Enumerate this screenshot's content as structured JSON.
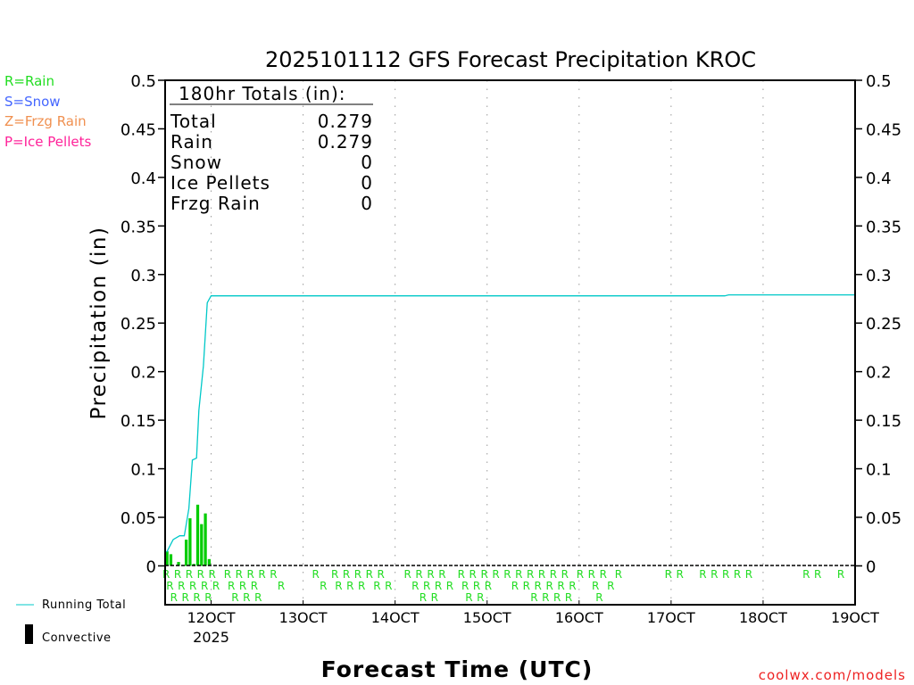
{
  "chart_data": {
    "type": "bar",
    "title": "2025101112 GFS Forecast Precipitation KROC",
    "xlabel": "Forecast Time (UTC)",
    "ylabel": "Precipitation (in)",
    "ylim": [
      -0.04,
      0.5
    ],
    "xlim_hours": [
      0,
      180
    ],
    "yticks": [
      0,
      0.05,
      0.1,
      0.15,
      0.2,
      0.25,
      0.3,
      0.35,
      0.4,
      0.45,
      0.5
    ],
    "ytick_labels": [
      "0",
      "0.05",
      "0.1",
      "0.15",
      "0.2",
      "0.25",
      "0.3",
      "0.35",
      "0.4",
      "0.45",
      "0.5"
    ],
    "xticks": [
      {
        "hour": 12,
        "label": "12OCT",
        "sublabel": "2025"
      },
      {
        "hour": 36,
        "label": "13OCT"
      },
      {
        "hour": 60,
        "label": "14OCT"
      },
      {
        "hour": 84,
        "label": "15OCT"
      },
      {
        "hour": 108,
        "label": "16OCT"
      },
      {
        "hour": 132,
        "label": "17OCT"
      },
      {
        "hour": 156,
        "label": "18OCT"
      },
      {
        "hour": 180,
        "label": "19OCT"
      }
    ],
    "grid": "vertical-dotted",
    "convective_bars": [
      {
        "hour": 0.5,
        "value": 0.015
      },
      {
        "hour": 1.5,
        "value": 0.012
      },
      {
        "hour": 3.5,
        "value": 0.004
      },
      {
        "hour": 5.5,
        "value": 0.027
      },
      {
        "hour": 6.5,
        "value": 0.049
      },
      {
        "hour": 7.5,
        "value": 0.002
      },
      {
        "hour": 8.5,
        "value": 0.063
      },
      {
        "hour": 9.5,
        "value": 0.043
      },
      {
        "hour": 10.5,
        "value": 0.054
      },
      {
        "hour": 11.5,
        "value": 0.007
      }
    ],
    "running_total": [
      [
        0.4,
        0.014
      ],
      [
        2.1,
        0.027
      ],
      [
        3.8,
        0.031
      ],
      [
        5,
        0.031
      ],
      [
        6.2,
        0.059
      ],
      [
        7.1,
        0.109
      ],
      [
        8.2,
        0.111
      ],
      [
        8.8,
        0.16
      ],
      [
        10,
        0.206
      ],
      [
        11,
        0.271
      ],
      [
        12,
        0.278
      ],
      [
        146,
        0.278
      ],
      [
        147,
        0.279
      ],
      [
        180,
        0.279
      ]
    ],
    "precip_type_marker": "R",
    "rain_hours": [
      0,
      1,
      2,
      3,
      4,
      5,
      6,
      7,
      8,
      9,
      10,
      11,
      12,
      13,
      16,
      17,
      18,
      19,
      20,
      21,
      22,
      23,
      24,
      25,
      28,
      30,
      39,
      41,
      44,
      45,
      47,
      48,
      50,
      51,
      53,
      55,
      56,
      58,
      63,
      65,
      66,
      67,
      68,
      69,
      70,
      71,
      72,
      74,
      77,
      78,
      79,
      80,
      81,
      82,
      83,
      84,
      86,
      89,
      91,
      92,
      94,
      95,
      96,
      97,
      98,
      99,
      100,
      101,
      102,
      103,
      104,
      105,
      106,
      108,
      111,
      112,
      113,
      114,
      116,
      118,
      131,
      134,
      140,
      143,
      146,
      149,
      152,
      167,
      170,
      176
    ],
    "colors": {
      "rain": "#22dd22",
      "snow": "#4466ff",
      "frzg": "#f09050",
      "ice": "#ff2299",
      "running_total": "#00c8c8",
      "bars": "#00cc00",
      "credit": "#ee2222"
    }
  },
  "legend": {
    "rain": "R=Rain",
    "snow": "S=Snow",
    "frzg": "Z=Frzg Rain",
    "ice": "P=Ice Pellets",
    "running_total": "Running Total",
    "convective": "Convective"
  },
  "totals": {
    "header": "180hr Totals (in):",
    "rows": [
      {
        "label": "Total",
        "value": "0.279"
      },
      {
        "label": "Rain",
        "value": "0.279"
      },
      {
        "label": "Snow",
        "value": "0"
      },
      {
        "label": "Ice Pellets",
        "value": "0"
      },
      {
        "label": "Frzg Rain",
        "value": "0"
      }
    ]
  },
  "credit": "coolwx.com/models"
}
